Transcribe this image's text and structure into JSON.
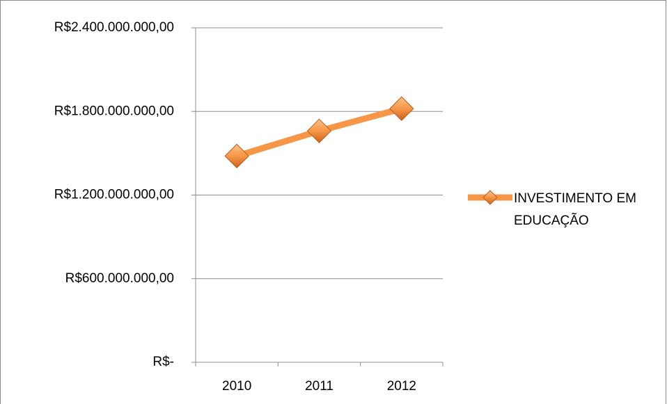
{
  "chart_data": {
    "type": "line",
    "categories": [
      "2010",
      "2011",
      "2012"
    ],
    "series": [
      {
        "name": "INVESTIMENTO EM EDUCAÇÃO",
        "color": "#f79646",
        "values": [
          1480000000,
          1660000000,
          1820000000
        ]
      }
    ],
    "ylim": [
      0,
      2400000000
    ],
    "yticks": [
      {
        "value": 0,
        "label": "R$-"
      },
      {
        "value": 600000000,
        "label": "R$600.000.000,00"
      },
      {
        "value": 1200000000,
        "label": "R$1.200.000.000,00"
      },
      {
        "value": 1800000000,
        "label": "R$1.800.000.000,00"
      },
      {
        "value": 2400000000,
        "label": "R$2.400.000.000,00"
      }
    ],
    "grid": true,
    "legend": "right"
  }
}
